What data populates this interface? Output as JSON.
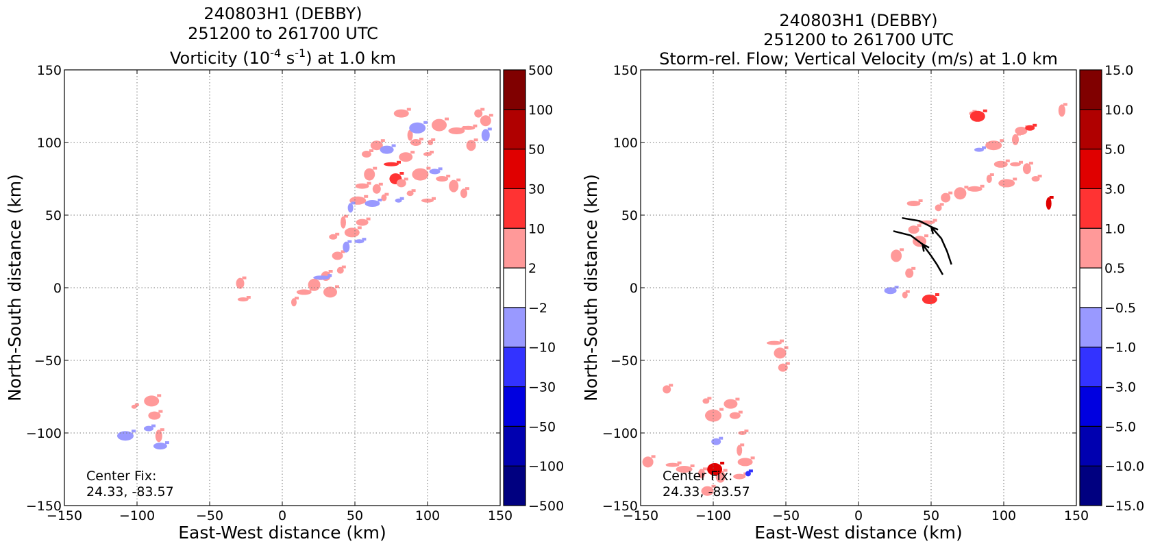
{
  "chart_data": [
    {
      "type": "heatmap",
      "title_lines": [
        "240803H1 (DEBBY)",
        "251200 to 261700 UTC"
      ],
      "title_field": {
        "prefix": "Vorticity (10",
        "exp1": "-4",
        "mid": " s",
        "exp2": "-1",
        "suffix": ") at 1.0 km"
      },
      "xlabel": "East-West distance (km)",
      "ylabel": "North-South distance (km)",
      "xlim": [
        -150,
        150
      ],
      "ylim": [
        -150,
        150
      ],
      "xticks": [
        "−150",
        "−100",
        "−50",
        "0",
        "50",
        "100",
        "150"
      ],
      "yticks": [
        "−150",
        "−100",
        "−50",
        "0",
        "50",
        "100",
        "150"
      ],
      "grid": true,
      "annotation": {
        "line1": "Center Fix:",
        "line2": "24.33, -83.57"
      },
      "colorbar": {
        "labels": [
          "500",
          "100",
          "50",
          "30",
          "10",
          "2",
          "−2",
          "−10",
          "−30",
          "−50",
          "−100",
          "−500"
        ],
        "colors": [
          "#800000",
          "#b00000",
          "#e00000",
          "#ff3333",
          "#ff9999",
          "#ffffff",
          "#9999ff",
          "#3333ff",
          "#0000e0",
          "#0000b0",
          "#000080"
        ]
      },
      "blobs": [
        {
          "x": -102,
          "y": -82,
          "c": "#ff9999"
        },
        {
          "x": -90,
          "y": -78,
          "c": "#ff9999"
        },
        {
          "x": -88,
          "y": -88,
          "c": "#ff9999"
        },
        {
          "x": -92,
          "y": -97,
          "c": "#9999ff"
        },
        {
          "x": -85,
          "y": -102,
          "c": "#ff9999"
        },
        {
          "x": -108,
          "y": -102,
          "c": "#9999ff"
        },
        {
          "x": -84,
          "y": -109,
          "c": "#9999ff"
        },
        {
          "x": -27,
          "y": -8,
          "c": "#ff9999"
        },
        {
          "x": -29,
          "y": 3,
          "c": "#ff9999"
        },
        {
          "x": 8,
          "y": -10,
          "c": "#ff9999"
        },
        {
          "x": 15,
          "y": -3,
          "c": "#ff9999"
        },
        {
          "x": 22,
          "y": 2,
          "c": "#ff9999"
        },
        {
          "x": 30,
          "y": 8,
          "c": "#ff9999"
        },
        {
          "x": 40,
          "y": 12,
          "c": "#ff9999"
        },
        {
          "x": 27,
          "y": 7,
          "c": "#9999ff"
        },
        {
          "x": 33,
          "y": -3,
          "c": "#ff9999"
        },
        {
          "x": 38,
          "y": 22,
          "c": "#ff9999"
        },
        {
          "x": 35,
          "y": 35,
          "c": "#ff9999"
        },
        {
          "x": 42,
          "y": 45,
          "c": "#ff9999"
        },
        {
          "x": 48,
          "y": 38,
          "c": "#ff9999"
        },
        {
          "x": 55,
          "y": 45,
          "c": "#ff9999"
        },
        {
          "x": 53,
          "y": 32,
          "c": "#9999ff"
        },
        {
          "x": 44,
          "y": 28,
          "c": "#9999ff"
        },
        {
          "x": 52,
          "y": 60,
          "c": "#ff9999"
        },
        {
          "x": 55,
          "y": 70,
          "c": "#ff9999"
        },
        {
          "x": 60,
          "y": 78,
          "c": "#ff9999"
        },
        {
          "x": 65,
          "y": 68,
          "c": "#ff9999"
        },
        {
          "x": 70,
          "y": 62,
          "c": "#ff9999"
        },
        {
          "x": 75,
          "y": 85,
          "c": "#ff3333"
        },
        {
          "x": 78,
          "y": 75,
          "c": "#ff3333"
        },
        {
          "x": 82,
          "y": 72,
          "c": "#ff9999"
        },
        {
          "x": 88,
          "y": 65,
          "c": "#ff9999"
        },
        {
          "x": 95,
          "y": 78,
          "c": "#ff9999"
        },
        {
          "x": 85,
          "y": 90,
          "c": "#ff9999"
        },
        {
          "x": 92,
          "y": 100,
          "c": "#ff9999"
        },
        {
          "x": 100,
          "y": 92,
          "c": "#ff9999"
        },
        {
          "x": 88,
          "y": 105,
          "c": "#ff9999"
        },
        {
          "x": 82,
          "y": 120,
          "c": "#ff9999"
        },
        {
          "x": 110,
          "y": 75,
          "c": "#ff9999"
        },
        {
          "x": 118,
          "y": 70,
          "c": "#ff9999"
        },
        {
          "x": 125,
          "y": 65,
          "c": "#ff9999"
        },
        {
          "x": 120,
          "y": 108,
          "c": "#ff9999"
        },
        {
          "x": 128,
          "y": 110,
          "c": "#ff9999"
        },
        {
          "x": 140,
          "y": 115,
          "c": "#ff9999"
        },
        {
          "x": 135,
          "y": 120,
          "c": "#ff9999"
        },
        {
          "x": 102,
          "y": 100,
          "c": "#ff9999"
        },
        {
          "x": 108,
          "y": 112,
          "c": "#ff9999"
        },
        {
          "x": 65,
          "y": 98,
          "c": "#ff9999"
        },
        {
          "x": 58,
          "y": 92,
          "c": "#ff9999"
        },
        {
          "x": 80,
          "y": 60,
          "c": "#9999ff"
        },
        {
          "x": 93,
          "y": 110,
          "c": "#9999ff"
        },
        {
          "x": 72,
          "y": 95,
          "c": "#9999ff"
        },
        {
          "x": 105,
          "y": 80,
          "c": "#9999ff"
        },
        {
          "x": 140,
          "y": 105,
          "c": "#9999ff"
        },
        {
          "x": 47,
          "y": 55,
          "c": "#9999ff"
        },
        {
          "x": 62,
          "y": 58,
          "c": "#9999ff"
        },
        {
          "x": 100,
          "y": 60,
          "c": "#ff9999"
        },
        {
          "x": 130,
          "y": 98,
          "c": "#ff9999"
        }
      ]
    },
    {
      "type": "heatmap",
      "title_lines": [
        "240803H1 (DEBBY)",
        "251200 to 261700 UTC",
        "Storm-rel. Flow; Vertical Velocity (m/s) at 1.0 km"
      ],
      "xlabel": "East-West distance (km)",
      "ylabel": "North-South distance (km)",
      "xlim": [
        -150,
        150
      ],
      "ylim": [
        -150,
        150
      ],
      "xticks": [
        "−150",
        "−100",
        "−50",
        "0",
        "50",
        "100",
        "150"
      ],
      "yticks": [
        "−150",
        "−100",
        "−50",
        "0",
        "50",
        "100",
        "150"
      ],
      "grid": true,
      "annotation": {
        "line1": "Center Fix:",
        "line2": "24.33, -83.57"
      },
      "colorbar": {
        "labels": [
          "15.0",
          "10.0",
          "5.0",
          "3.0",
          "1.0",
          "0.5",
          "−0.5",
          "−1.0",
          "−3.0",
          "−5.0",
          "−10.0",
          "−15.0"
        ],
        "colors": [
          "#800000",
          "#b00000",
          "#e00000",
          "#ff3333",
          "#ff9999",
          "#ffffff",
          "#9999ff",
          "#3333ff",
          "#0000e0",
          "#0000b0",
          "#000080"
        ]
      },
      "blobs": [
        {
          "x": 78,
          "y": 120,
          "c": "#ff9999"
        },
        {
          "x": 82,
          "y": 118,
          "c": "#ff3333"
        },
        {
          "x": 112,
          "y": 108,
          "c": "#ff9999"
        },
        {
          "x": 118,
          "y": 110,
          "c": "#ff3333"
        },
        {
          "x": 140,
          "y": 122,
          "c": "#ff9999"
        },
        {
          "x": 93,
          "y": 98,
          "c": "#ff9999"
        },
        {
          "x": 98,
          "y": 85,
          "c": "#ff9999"
        },
        {
          "x": 108,
          "y": 85,
          "c": "#ff9999"
        },
        {
          "x": 116,
          "y": 82,
          "c": "#ff9999"
        },
        {
          "x": 90,
          "y": 75,
          "c": "#ff9999"
        },
        {
          "x": 80,
          "y": 68,
          "c": "#ff9999"
        },
        {
          "x": 70,
          "y": 65,
          "c": "#ff9999"
        },
        {
          "x": 60,
          "y": 62,
          "c": "#ff9999"
        },
        {
          "x": 55,
          "y": 55,
          "c": "#ff9999"
        },
        {
          "x": 47,
          "y": 45,
          "c": "#ff9999"
        },
        {
          "x": 42,
          "y": 32,
          "c": "#ff9999"
        },
        {
          "x": 38,
          "y": 40,
          "c": "#ff9999"
        },
        {
          "x": 122,
          "y": 75,
          "c": "#ff9999"
        },
        {
          "x": 131,
          "y": 58,
          "c": "#e00000"
        },
        {
          "x": 49,
          "y": -8,
          "c": "#ff3333"
        },
        {
          "x": 22,
          "y": -2,
          "c": "#9999ff"
        },
        {
          "x": 83,
          "y": 95,
          "c": "#9999ff"
        },
        {
          "x": 108,
          "y": 102,
          "c": "#ff9999"
        },
        {
          "x": 102,
          "y": 72,
          "c": "#ff9999"
        },
        {
          "x": 38,
          "y": 58,
          "c": "#ff9999"
        },
        {
          "x": 26,
          "y": 22,
          "c": "#ff9999"
        },
        {
          "x": 35,
          "y": 10,
          "c": "#ff9999"
        },
        {
          "x": 32,
          "y": -5,
          "c": "#ff9999"
        },
        {
          "x": -58,
          "y": -38,
          "c": "#ff9999"
        },
        {
          "x": -54,
          "y": -45,
          "c": "#ff9999"
        },
        {
          "x": -52,
          "y": -55,
          "c": "#ff9999"
        },
        {
          "x": -105,
          "y": -78,
          "c": "#ff9999"
        },
        {
          "x": -100,
          "y": -88,
          "c": "#ff9999"
        },
        {
          "x": -88,
          "y": -80,
          "c": "#ff9999"
        },
        {
          "x": -85,
          "y": -88,
          "c": "#ff9999"
        },
        {
          "x": -80,
          "y": -100,
          "c": "#ff9999"
        },
        {
          "x": -82,
          "y": -112,
          "c": "#ff9999"
        },
        {
          "x": -78,
          "y": -120,
          "c": "#ff9999"
        },
        {
          "x": -82,
          "y": -130,
          "c": "#ff9999"
        },
        {
          "x": -95,
          "y": -130,
          "c": "#ff9999"
        },
        {
          "x": -108,
          "y": -128,
          "c": "#ff9999"
        },
        {
          "x": -120,
          "y": -125,
          "c": "#ff9999"
        },
        {
          "x": -128,
          "y": -122,
          "c": "#ff9999"
        },
        {
          "x": -145,
          "y": -120,
          "c": "#ff9999"
        },
        {
          "x": -132,
          "y": -70,
          "c": "#ff9999"
        },
        {
          "x": -76,
          "y": -128,
          "c": "#3333ff"
        },
        {
          "x": -99,
          "y": -125,
          "c": "#e00000"
        },
        {
          "x": -104,
          "y": -140,
          "c": "#ff9999"
        },
        {
          "x": -98,
          "y": -106,
          "c": "#9999ff"
        }
      ],
      "flow": [
        [
          [
            24,
            39
          ],
          [
            36,
            36
          ],
          [
            44,
            30
          ],
          [
            50,
            22
          ],
          [
            54,
            16
          ],
          [
            58,
            9
          ]
        ],
        [
          [
            30,
            48
          ],
          [
            42,
            46
          ],
          [
            50,
            42
          ],
          [
            57,
            34
          ],
          [
            61,
            25
          ],
          [
            64,
            16
          ]
        ]
      ]
    }
  ]
}
